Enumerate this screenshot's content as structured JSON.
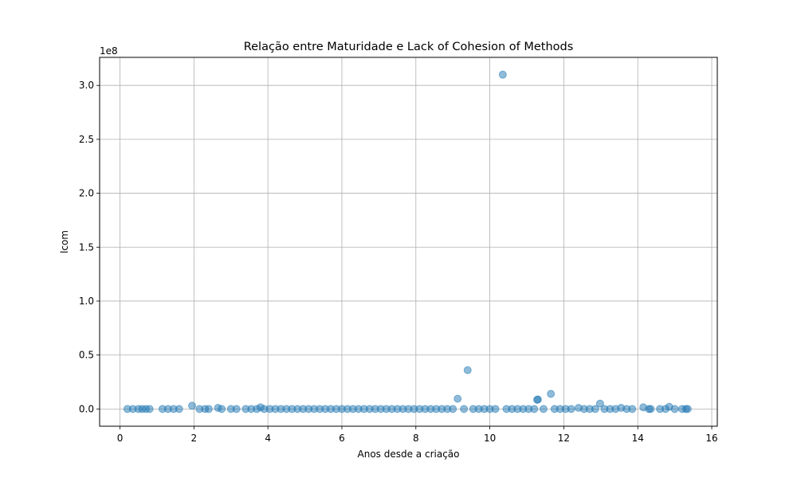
{
  "chart_data": {
    "type": "scatter",
    "title": "Relação entre Maturidade e Lack of Cohesion of Methods",
    "xlabel": "Anos desde a criação",
    "ylabel": "lcom",
    "y_offset_label": "1e8",
    "xlim": [
      -0.55,
      16.15
    ],
    "ylim": [
      -16000000,
      326000000
    ],
    "x_ticks": [
      0,
      2,
      4,
      6,
      8,
      10,
      12,
      14,
      16
    ],
    "x_tick_labels": [
      "0",
      "2",
      "4",
      "6",
      "8",
      "10",
      "12",
      "14",
      "16"
    ],
    "y_ticks": [
      0,
      50000000,
      100000000,
      150000000,
      200000000,
      250000000,
      300000000
    ],
    "y_tick_labels": [
      "0.0",
      "0.5",
      "1.0",
      "1.5",
      "2.0",
      "2.5",
      "3.0"
    ],
    "grid": true,
    "marker_color": "#1f77b4",
    "marker_alpha": 0.5,
    "points": [
      {
        "x": 0.2,
        "y": 0
      },
      {
        "x": 0.35,
        "y": 0
      },
      {
        "x": 0.5,
        "y": 0
      },
      {
        "x": 0.6,
        "y": 0
      },
      {
        "x": 0.7,
        "y": 0
      },
      {
        "x": 0.8,
        "y": 0
      },
      {
        "x": 1.15,
        "y": 0
      },
      {
        "x": 1.3,
        "y": 0
      },
      {
        "x": 1.45,
        "y": 0
      },
      {
        "x": 1.6,
        "y": 0
      },
      {
        "x": 1.95,
        "y": 3000000
      },
      {
        "x": 2.15,
        "y": 0
      },
      {
        "x": 2.3,
        "y": 0
      },
      {
        "x": 2.4,
        "y": 0
      },
      {
        "x": 2.65,
        "y": 1000000
      },
      {
        "x": 2.75,
        "y": 0
      },
      {
        "x": 3.0,
        "y": 0
      },
      {
        "x": 3.15,
        "y": 0
      },
      {
        "x": 3.4,
        "y": 0
      },
      {
        "x": 3.55,
        "y": 0
      },
      {
        "x": 3.7,
        "y": 0
      },
      {
        "x": 3.8,
        "y": 1500000
      },
      {
        "x": 3.9,
        "y": 0
      },
      {
        "x": 4.05,
        "y": 0
      },
      {
        "x": 4.2,
        "y": 0
      },
      {
        "x": 4.35,
        "y": 0
      },
      {
        "x": 4.5,
        "y": 0
      },
      {
        "x": 4.65,
        "y": 0
      },
      {
        "x": 4.8,
        "y": 0
      },
      {
        "x": 4.95,
        "y": 0
      },
      {
        "x": 5.1,
        "y": 0
      },
      {
        "x": 5.25,
        "y": 0
      },
      {
        "x": 5.4,
        "y": 0
      },
      {
        "x": 5.55,
        "y": 0
      },
      {
        "x": 5.7,
        "y": 0
      },
      {
        "x": 5.85,
        "y": 0
      },
      {
        "x": 6.0,
        "y": 0
      },
      {
        "x": 6.15,
        "y": 0
      },
      {
        "x": 6.3,
        "y": 0
      },
      {
        "x": 6.45,
        "y": 0
      },
      {
        "x": 6.6,
        "y": 0
      },
      {
        "x": 6.75,
        "y": 0
      },
      {
        "x": 6.9,
        "y": 0
      },
      {
        "x": 7.05,
        "y": 0
      },
      {
        "x": 7.2,
        "y": 0
      },
      {
        "x": 7.35,
        "y": 0
      },
      {
        "x": 7.5,
        "y": 0
      },
      {
        "x": 7.65,
        "y": 0
      },
      {
        "x": 7.8,
        "y": 0
      },
      {
        "x": 7.95,
        "y": 0
      },
      {
        "x": 8.1,
        "y": 0
      },
      {
        "x": 8.25,
        "y": 0
      },
      {
        "x": 8.4,
        "y": 0
      },
      {
        "x": 8.55,
        "y": 0
      },
      {
        "x": 8.7,
        "y": 0
      },
      {
        "x": 8.85,
        "y": 0
      },
      {
        "x": 9.0,
        "y": 0
      },
      {
        "x": 9.13,
        "y": 9500000
      },
      {
        "x": 9.4,
        "y": 36000000
      },
      {
        "x": 9.3,
        "y": 0
      },
      {
        "x": 9.55,
        "y": 0
      },
      {
        "x": 9.7,
        "y": 0
      },
      {
        "x": 9.85,
        "y": 0
      },
      {
        "x": 10.0,
        "y": 0
      },
      {
        "x": 10.15,
        "y": 0
      },
      {
        "x": 10.35,
        "y": 310000000
      },
      {
        "x": 10.45,
        "y": 0
      },
      {
        "x": 10.6,
        "y": 0
      },
      {
        "x": 10.75,
        "y": 0
      },
      {
        "x": 10.9,
        "y": 0
      },
      {
        "x": 11.05,
        "y": 0
      },
      {
        "x": 11.2,
        "y": 0
      },
      {
        "x": 11.28,
        "y": 8500000
      },
      {
        "x": 11.3,
        "y": 8800000
      },
      {
        "x": 11.45,
        "y": 0
      },
      {
        "x": 11.65,
        "y": 14000000
      },
      {
        "x": 11.75,
        "y": 0
      },
      {
        "x": 11.9,
        "y": 0
      },
      {
        "x": 12.05,
        "y": 0
      },
      {
        "x": 12.2,
        "y": 0
      },
      {
        "x": 12.4,
        "y": 1000000
      },
      {
        "x": 12.55,
        "y": 0
      },
      {
        "x": 12.7,
        "y": 0
      },
      {
        "x": 12.85,
        "y": 0
      },
      {
        "x": 12.98,
        "y": 5000000
      },
      {
        "x": 13.1,
        "y": 0
      },
      {
        "x": 13.25,
        "y": 0
      },
      {
        "x": 13.4,
        "y": 0
      },
      {
        "x": 13.55,
        "y": 1000000
      },
      {
        "x": 13.7,
        "y": 0
      },
      {
        "x": 13.85,
        "y": 0
      },
      {
        "x": 14.15,
        "y": 1500000
      },
      {
        "x": 14.3,
        "y": 0
      },
      {
        "x": 14.35,
        "y": 0
      },
      {
        "x": 14.6,
        "y": 0
      },
      {
        "x": 14.75,
        "y": 0
      },
      {
        "x": 14.85,
        "y": 2000000
      },
      {
        "x": 15.0,
        "y": 0
      },
      {
        "x": 15.2,
        "y": 0
      },
      {
        "x": 15.3,
        "y": 0
      },
      {
        "x": 15.35,
        "y": 0
      }
    ]
  }
}
